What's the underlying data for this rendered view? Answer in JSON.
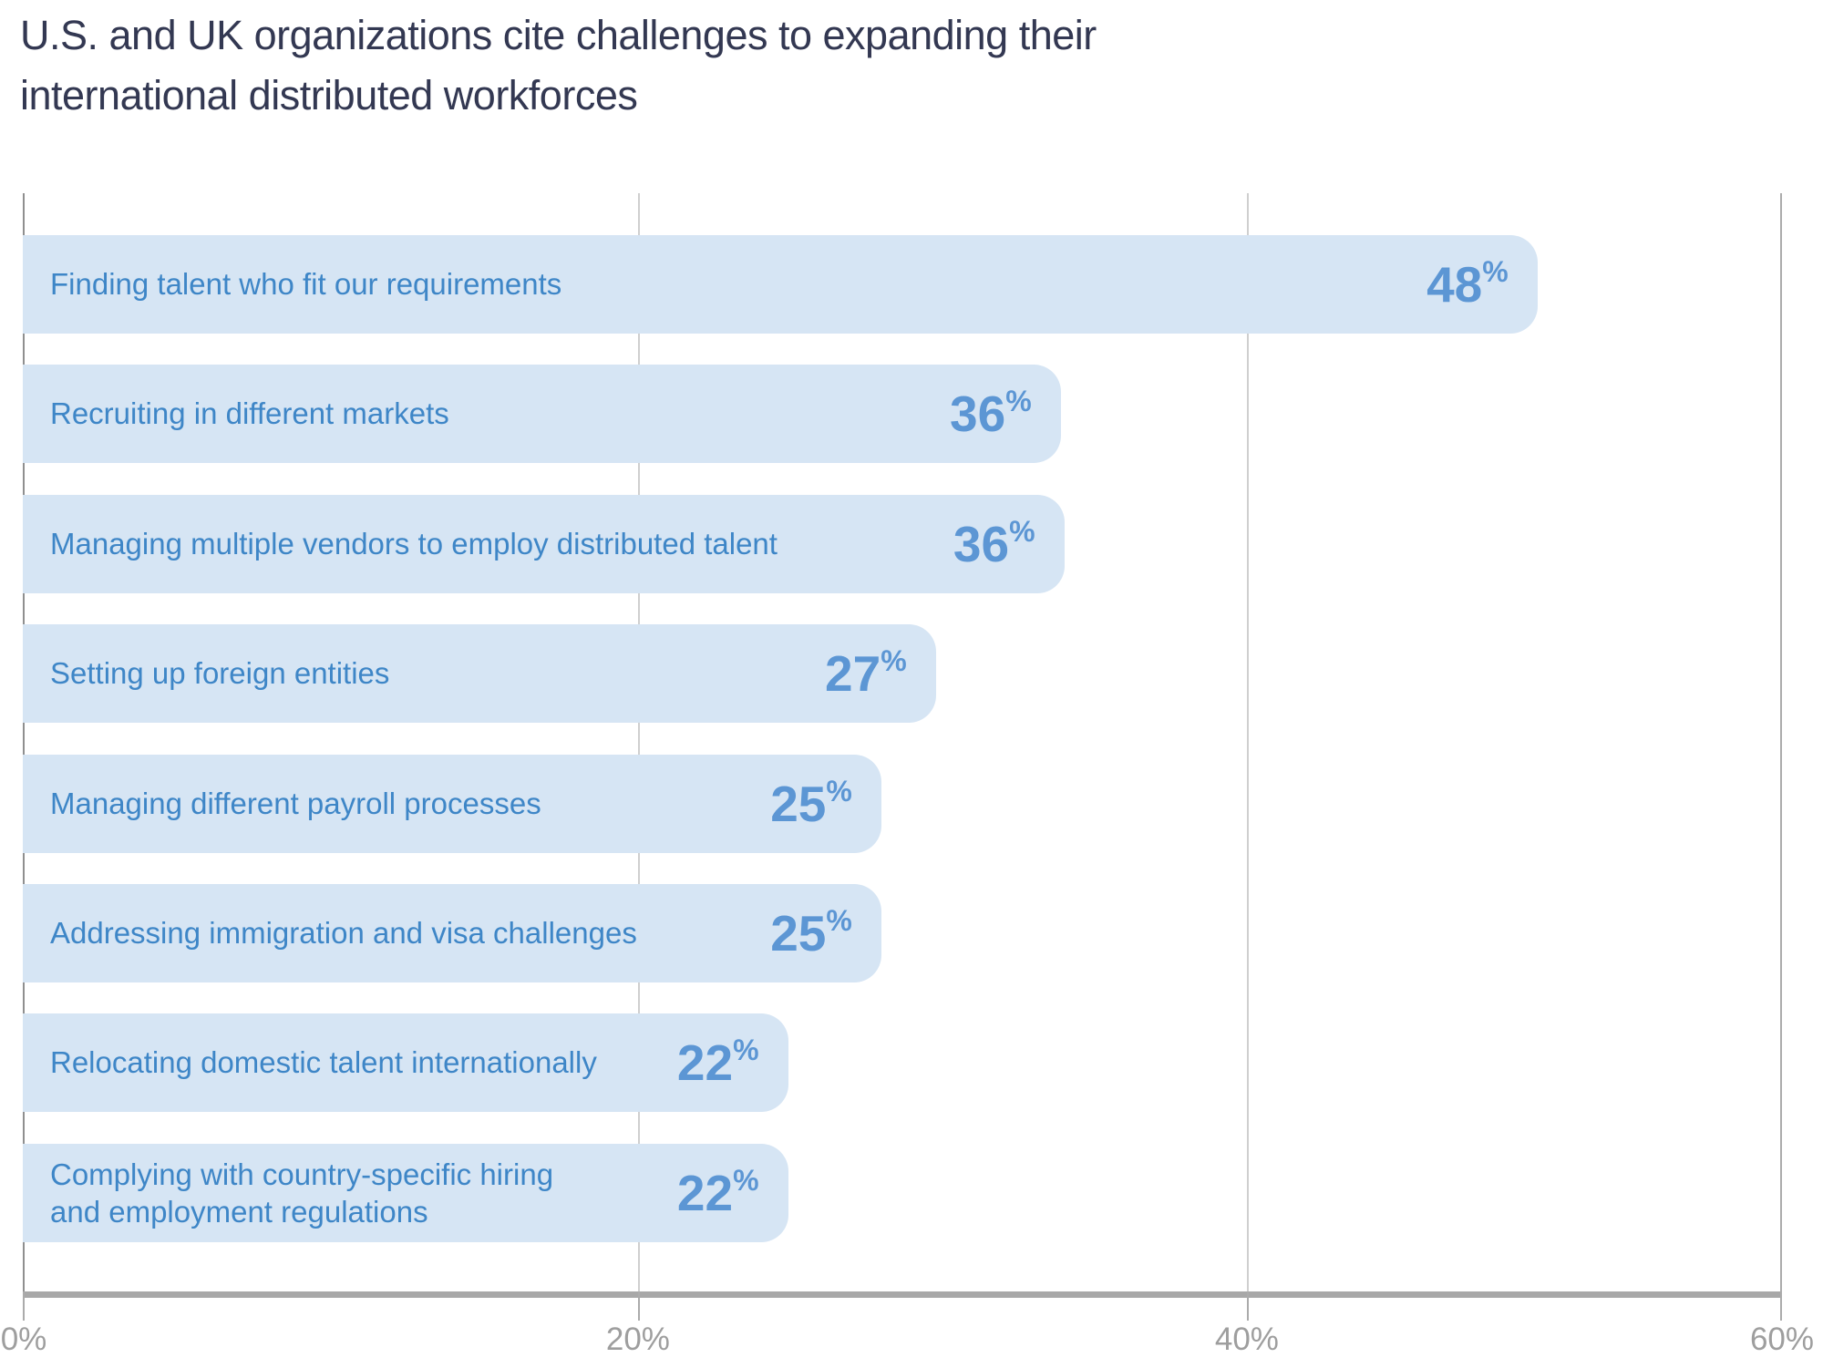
{
  "title": {
    "line1": "U.S. and UK organizations cite challenges to expanding their",
    "line2": "international distributed workforces"
  },
  "colors": {
    "title-color": "#333852",
    "bar-fill": "#d6e5f4",
    "label-blue": "#3e86c7",
    "value-blue": "#5c96d4",
    "grid-gray": "#cfcfcf",
    "axis-left-gray": "#8f8f8f",
    "axis-line-gray": "#a8a8a8",
    "tick-text-gray": "#9e9e9e"
  },
  "chart_data": {
    "type": "bar",
    "orientation": "horizontal",
    "title": "U.S. and UK organizations cite challenges to expanding their international distributed workforces",
    "xlabel": "",
    "ylabel": "",
    "xlim": [
      0,
      60
    ],
    "x_ticks": [
      "0%",
      "20%",
      "40%",
      "60%"
    ],
    "grid": "vertical gridlines on",
    "legend": "none",
    "percent_suffix": "%",
    "categories": [
      "Finding talent who fit our requirements",
      "Recruiting in different markets",
      "Managing multiple vendors to employ distributed talent",
      "Setting up foreign entities",
      "Managing different payroll processes",
      "Addressing immigration and visa challenges",
      "Relocating domestic talent internationally",
      "Complying with country-specific hiring and employment regulations"
    ],
    "values": [
      48,
      36,
      36,
      27,
      25,
      25,
      22,
      22
    ],
    "items": [
      {
        "label": "Finding talent who fit our requirements",
        "value": 48,
        "width_pct": "86.1%"
      },
      {
        "label": "Recruiting in different markets",
        "value": 36,
        "width_pct": "59.0%"
      },
      {
        "label": "Managing multiple vendors to employ distributed talent",
        "value": 36,
        "width_pct": "59.2%"
      },
      {
        "label": "Setting up foreign entities",
        "value": 27,
        "width_pct": "51.9%"
      },
      {
        "label": "Managing different payroll processes",
        "value": 25,
        "width_pct": "48.8%"
      },
      {
        "label": "Addressing immigration and visa challenges",
        "value": 25,
        "width_pct": "48.8%"
      },
      {
        "label": "Relocating domestic talent internationally",
        "value": 22,
        "width_pct": "43.5%"
      },
      {
        "label": "Complying with country-specific hiring\nand employment regulations",
        "value": 22,
        "width_pct": "43.5%"
      }
    ]
  },
  "axis": {
    "tick_0": "0%",
    "tick_20": "20%",
    "tick_40": "40%",
    "tick_60": "60%"
  }
}
